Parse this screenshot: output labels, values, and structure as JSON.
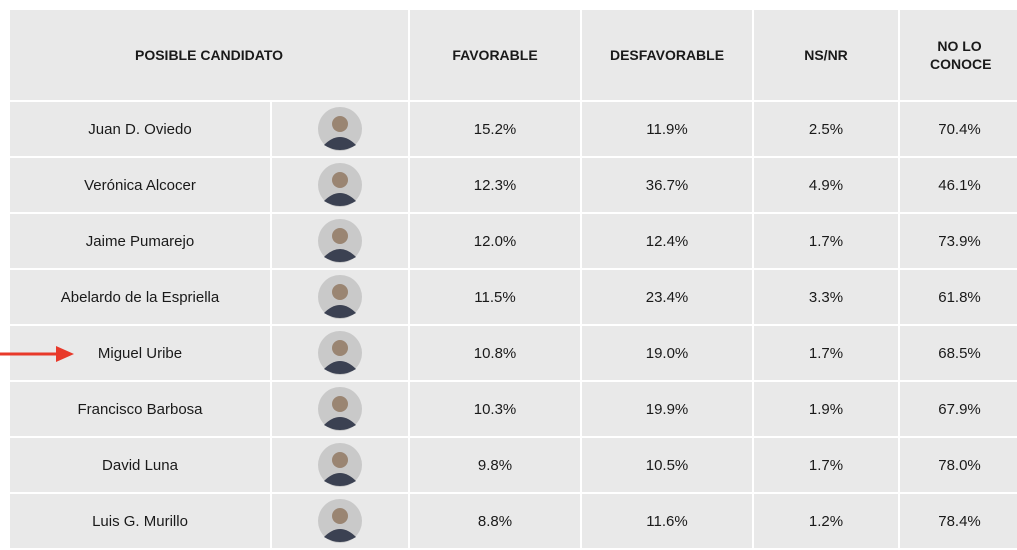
{
  "table": {
    "columns": [
      "POSIBLE CANDIDATO",
      "FAVORABLE",
      "DESFAVORABLE",
      "NS/NR",
      "NO LO CONOCE"
    ],
    "rows": [
      [
        "Juan D. Oviedo",
        "15.2%",
        "11.9%",
        "2.5%",
        "70.4%"
      ],
      [
        "Verónica Alcocer",
        "12.3%",
        "36.7%",
        "4.9%",
        "46.1%"
      ],
      [
        "Jaime Pumarejo",
        "12.0%",
        "12.4%",
        "1.7%",
        "73.9%"
      ],
      [
        "Abelardo de la Espriella",
        "11.5%",
        "23.4%",
        "3.3%",
        "61.8%"
      ],
      [
        "Miguel Uribe",
        "10.8%",
        "19.0%",
        "1.7%",
        "68.5%"
      ],
      [
        "Francisco Barbosa",
        "10.3%",
        "19.9%",
        "1.9%",
        "67.9%"
      ],
      [
        "David Luna",
        "9.8%",
        "10.5%",
        "1.7%",
        "78.0%"
      ],
      [
        "Luis G. Murillo",
        "8.8%",
        "11.6%",
        "1.2%",
        "78.4%"
      ]
    ]
  }
}
